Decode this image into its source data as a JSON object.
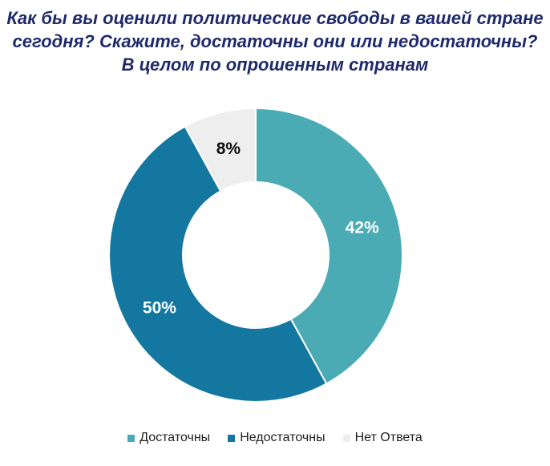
{
  "chart_data": {
    "type": "pie",
    "title_lines": [
      "Как бы вы оценили политические свободы в вашей стране",
      "сегодня? Скажите, достаточны они или недостаточны?",
      "В целом по опрошенным странам"
    ],
    "series": [
      {
        "name": "Достаточны",
        "value": 42,
        "label": "42%",
        "color": "#4aabb4"
      },
      {
        "name": "Недостаточны",
        "value": 50,
        "label": "50%",
        "color": "#13779f"
      },
      {
        "name": "Нет Ответа",
        "value": 8,
        "label": "8%",
        "color": "#eeeeee"
      }
    ],
    "legend_position": "bottom",
    "donut": true
  }
}
